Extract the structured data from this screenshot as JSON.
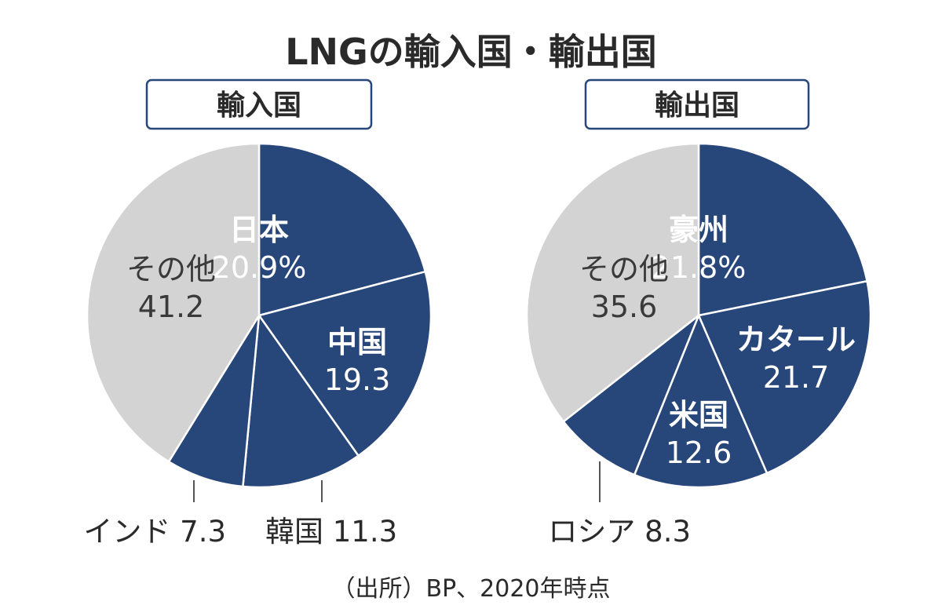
{
  "title": "LNGの輸入国・輸出国",
  "source": "（出所）BP、2020年時点",
  "colors": {
    "navy": "#27467a",
    "gray": "#d3d3d3",
    "border": "#27467a",
    "dark_text": "#2a2a2a",
    "white": "#ffffff"
  },
  "chart_data": [
    {
      "type": "pie",
      "title": "輸入国",
      "unit": "%",
      "slices": [
        {
          "name": "日本",
          "value": 20.9,
          "value_label": "20.9%",
          "color": "#27467a"
        },
        {
          "name": "中国",
          "value": 19.3,
          "value_label": "19.3",
          "color": "#27467a"
        },
        {
          "name": "韓国",
          "value": 11.3,
          "value_label": "11.3",
          "color": "#27467a"
        },
        {
          "name": "インド",
          "value": 7.3,
          "value_label": "7.3",
          "color": "#27467a"
        },
        {
          "name": "その他",
          "value": 41.2,
          "value_label": "41.2",
          "color": "#d3d3d3"
        }
      ]
    },
    {
      "type": "pie",
      "title": "輸出国",
      "unit": "%",
      "slices": [
        {
          "name": "豪州",
          "value": 21.8,
          "value_label": "21.8%",
          "color": "#27467a"
        },
        {
          "name": "カタール",
          "value": 21.7,
          "value_label": "21.7",
          "color": "#27467a"
        },
        {
          "name": "米国",
          "value": 12.6,
          "value_label": "12.6",
          "color": "#27467a"
        },
        {
          "name": "ロシア",
          "value": 8.3,
          "value_label": "8.3",
          "color": "#27467a"
        },
        {
          "name": "その他",
          "value": 35.6,
          "value_label": "35.6",
          "color": "#d3d3d3"
        }
      ]
    }
  ]
}
